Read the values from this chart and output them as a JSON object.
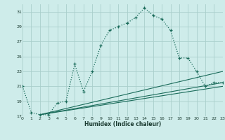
{
  "xlabel": "Humidex (Indice chaleur)",
  "background_color": "#ceecea",
  "grid_color": "#aacfcb",
  "line_color": "#1a6b5a",
  "xlim": [
    0,
    23
  ],
  "ylim": [
    17,
    32
  ],
  "yticks": [
    17,
    19,
    21,
    23,
    25,
    27,
    29,
    31
  ],
  "xticks": [
    0,
    1,
    2,
    3,
    4,
    5,
    6,
    7,
    8,
    9,
    10,
    11,
    12,
    13,
    14,
    15,
    16,
    17,
    18,
    19,
    20,
    21,
    22,
    23
  ],
  "main_x": [
    0,
    1,
    2,
    3,
    4,
    5,
    6,
    7,
    8,
    9,
    10,
    11,
    12,
    13,
    14,
    15,
    16,
    17,
    18,
    19,
    20,
    21,
    22,
    23
  ],
  "main_y": [
    21.0,
    17.5,
    17.2,
    17.2,
    18.8,
    19.0,
    24.0,
    20.3,
    23.0,
    26.5,
    28.5,
    29.0,
    29.5,
    30.2,
    31.5,
    30.5,
    30.0,
    28.5,
    24.8,
    24.8,
    23.0,
    21.0,
    21.5,
    21.5
  ],
  "ref_lines": [
    {
      "x0": 2,
      "y0": 17.2,
      "x1": 23,
      "y1": 23.0
    },
    {
      "x0": 2,
      "y0": 17.2,
      "x1": 23,
      "y1": 21.5
    },
    {
      "x0": 2,
      "y0": 17.2,
      "x1": 23,
      "y1": 21.0
    }
  ]
}
